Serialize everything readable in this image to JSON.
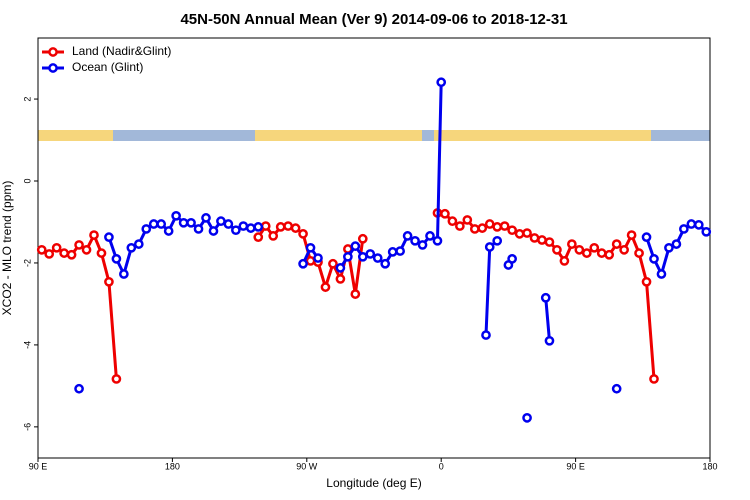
{
  "chart_data": {
    "type": "line",
    "title": "45N-50N Annual Mean (Ver 9)   2014-09-06 to 2018-12-31",
    "x_label": "Longitude (deg E)",
    "y_label": "XCO2 - MLO trend (ppm)",
    "xlim": [
      90,
      540
    ],
    "xticks": [
      {
        "value": 90,
        "label": "90 E"
      },
      180,
      {
        "value": 270,
        "label": "90 W"
      },
      {
        "value": 360,
        "label": "0"
      },
      {
        "value": 450,
        "label": "90 E"
      },
      {
        "value": 540,
        "label": "180"
      }
    ],
    "ylim": [
      -6.76,
      3.49
    ],
    "yticks": [
      -6,
      -4,
      -2,
      0,
      2
    ],
    "legend": "top-left",
    "series": [
      {
        "name": "Land (Nadir&Glint)",
        "color": "#ee0000",
        "x": [
          92.5,
          97.5,
          102.5,
          107.5,
          112.5,
          117.5,
          122.5,
          127.5,
          132.5,
          137.5,
          142.5,
          190,
          237.5,
          242.5,
          247.5,
          252.5,
          257.5,
          262.5,
          267.5,
          272.5,
          277.5,
          282.5,
          287.5,
          292.5,
          297.5,
          302.5,
          307.5,
          330,
          357.5,
          362.5,
          367.5,
          372.5,
          377.5,
          382.5,
          387.5,
          392.5,
          397.5,
          402.5,
          407.5,
          412.5,
          417.5,
          422.5,
          427.5,
          432.5,
          437.5,
          442.5,
          447.5,
          452.5,
          457.5,
          462.5,
          467.5,
          472.5,
          477.5,
          482.5,
          487.5,
          492.5,
          497.5,
          502.5
        ],
        "values": [
          -1.68,
          -1.78,
          -1.63,
          -1.76,
          -1.8,
          -1.56,
          -1.68,
          -1.32,
          -1.76,
          -2.46,
          -4.83,
          null,
          -1.37,
          -1.1,
          -1.34,
          -1.12,
          -1.1,
          -1.15,
          -1.29,
          -1.95,
          -1.98,
          -2.59,
          -2.02,
          -2.39,
          -1.66,
          -2.76,
          -1.41,
          null,
          -0.78,
          -0.8,
          -0.98,
          -1.1,
          -0.95,
          -1.17,
          -1.15,
          -1.05,
          -1.12,
          -1.1,
          -1.2,
          -1.29,
          -1.27,
          -1.39,
          -1.44,
          -1.49,
          -1.68,
          -1.95,
          -1.54,
          -1.68,
          -1.76,
          -1.63,
          -1.76,
          -1.8,
          -1.54,
          -1.68,
          -1.32,
          -1.76,
          -2.46,
          -4.83
        ]
      },
      {
        "name": "Ocean (Glint)",
        "color": "#0000ee",
        "x": [
          117.5,
          127.5,
          137.5,
          142.5,
          147.5,
          152.5,
          157.5,
          162.5,
          167.5,
          172.5,
          177.5,
          182.5,
          187.5,
          192.5,
          197.5,
          202.5,
          207.5,
          212.5,
          217.5,
          222.5,
          227.5,
          232.5,
          237.5,
          252.5,
          267.5,
          272.5,
          277.5,
          285,
          292.5,
          297.5,
          302.5,
          307.5,
          312.5,
          317.5,
          322.5,
          327.5,
          332.5,
          337.5,
          342.5,
          347.5,
          352.5,
          357.5,
          360,
          375,
          390,
          392.5,
          397.5,
          402.5,
          405,
          407.5,
          412.5,
          417.5,
          422.5,
          430,
          432.5,
          455,
          477.5,
          490,
          497.5,
          502.5,
          507.5,
          512.5,
          517.5,
          522.5,
          527.5,
          532.5,
          537.5
        ],
        "values": [
          -5.07,
          null,
          -1.37,
          -1.9,
          -2.27,
          -1.63,
          -1.54,
          -1.17,
          -1.05,
          -1.05,
          -1.22,
          -0.85,
          -1.02,
          -1.02,
          -1.17,
          -0.9,
          -1.22,
          -0.98,
          -1.05,
          -1.2,
          -1.1,
          -1.15,
          -1.12,
          null,
          -2.02,
          -1.63,
          -1.88,
          null,
          -2.12,
          -1.85,
          -1.59,
          -1.85,
          -1.78,
          -1.88,
          -2.02,
          -1.73,
          -1.71,
          -1.34,
          -1.46,
          -1.56,
          -1.34,
          -1.46,
          2.41,
          null,
          -3.76,
          -1.61,
          -1.46,
          null,
          -2.05,
          -1.9,
          null,
          -5.78,
          null,
          -2.85,
          -3.9,
          null,
          -5.07,
          null,
          -1.37,
          -1.9,
          -2.27,
          -1.63,
          -1.54,
          -1.17,
          -1.05,
          -1.07,
          -1.24
        ]
      }
    ]
  }
}
